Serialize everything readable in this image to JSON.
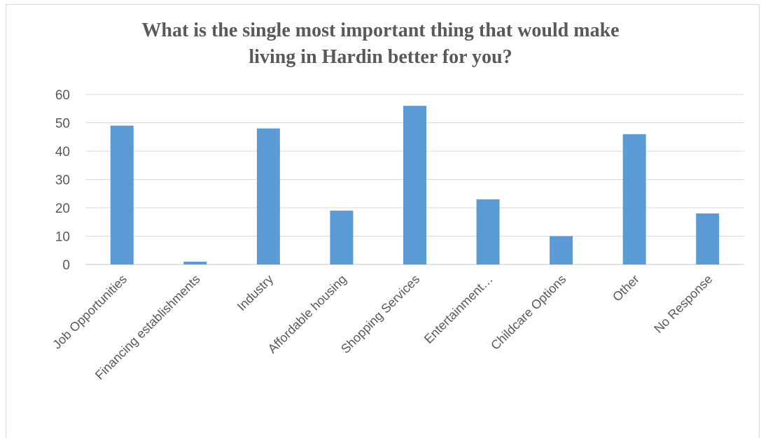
{
  "chart_data": {
    "type": "bar",
    "title_lines": [
      "What is the single most important thing that would make",
      "living in Hardin better for you?"
    ],
    "xlabel": "",
    "ylabel": "",
    "categories": [
      "Job Opportunities",
      "Financing establishments",
      "Industry",
      "Affordable housing",
      "Shopping Services",
      "Entertainment…",
      "Childcare Options",
      "Other",
      "No Response"
    ],
    "values": [
      49,
      1,
      48,
      19,
      56,
      23,
      10,
      46,
      18
    ],
    "yticks": [
      "0",
      "10",
      "20",
      "30",
      "40",
      "50",
      "60"
    ],
    "ylim": [
      0,
      60
    ],
    "grid": true,
    "legend": "none",
    "bar_color": "#5b9bd5",
    "grid_color": "#d9d9d9"
  }
}
